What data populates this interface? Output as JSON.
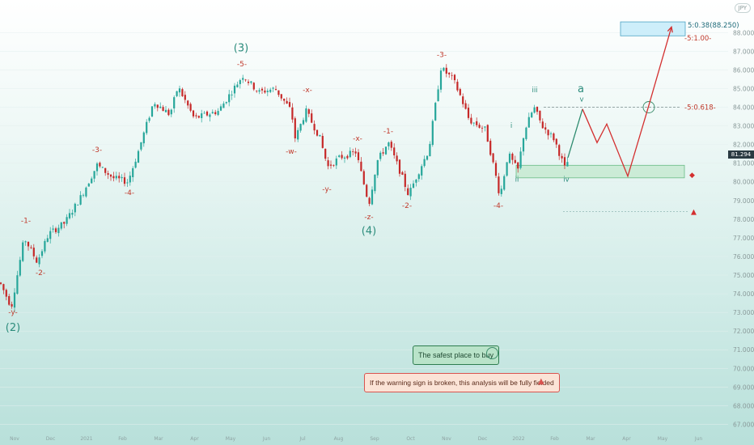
{
  "ticker": "JPY",
  "last_price": "81.294",
  "notes": {
    "safest_place": "The safest place to buy",
    "warning": "If the warning sign is broken, this analysis will be fully fielded"
  },
  "fib_labels": {
    "target": "5:0.38(88.250)",
    "level_1": "-5:1.00-",
    "level_0618": "-5:0.618-"
  },
  "colors": {
    "up": "#26a69a",
    "down": "#c62828",
    "projection": "#d32f2f",
    "projection_green": "#2e8b6f",
    "box_green": "#c9ebd4",
    "box_blue": "#cdeefa"
  },
  "chart_data": {
    "type": "candlestick",
    "ylim": [
      66.5,
      89.4
    ],
    "y_ticks": [
      "67.000",
      "68.000",
      "69.000",
      "70.000",
      "71.000",
      "72.000",
      "73.000",
      "74.000",
      "75.000",
      "76.000",
      "77.000",
      "78.000",
      "79.000",
      "80.000",
      "81.000",
      "82.000",
      "83.000",
      "84.000",
      "85.000",
      "86.000",
      "87.000",
      "88.000"
    ],
    "x_ticks": [
      "Nov",
      "Dec",
      "2021",
      "Feb",
      "Mar",
      "Apr",
      "May",
      "Jun",
      "Jul",
      "Aug",
      "Sep",
      "Oct",
      "Nov",
      "Dec",
      "2022",
      "Feb",
      "Mar",
      "Apr",
      "May",
      "Jun"
    ],
    "price_path": [
      [
        0,
        74.6
      ],
      [
        14,
        73.3
      ],
      [
        30,
        77.0
      ],
      [
        46,
        75.7
      ],
      [
        60,
        77.2
      ],
      [
        80,
        77.8
      ],
      [
        100,
        79.2
      ],
      [
        120,
        80.9
      ],
      [
        140,
        80.2
      ],
      [
        158,
        80.0
      ],
      [
        170,
        81.5
      ],
      [
        190,
        84.3
      ],
      [
        210,
        83.6
      ],
      [
        220,
        85.1
      ],
      [
        240,
        83.4
      ],
      [
        270,
        83.8
      ],
      [
        300,
        85.7
      ],
      [
        320,
        84.8
      ],
      [
        340,
        85.0
      ],
      [
        360,
        83.8
      ],
      [
        365,
        82.3
      ],
      [
        378,
        83.8
      ],
      [
        395,
        82.4
      ],
      [
        405,
        80.8
      ],
      [
        420,
        81.3
      ],
      [
        440,
        81.6
      ],
      [
        448,
        80.2
      ],
      [
        456,
        78.8
      ],
      [
        466,
        81.1
      ],
      [
        480,
        82.1
      ],
      [
        495,
        80.5
      ],
      [
        505,
        79.3
      ],
      [
        520,
        80.8
      ],
      [
        530,
        81.7
      ],
      [
        545,
        86.1
      ],
      [
        560,
        85.5
      ],
      [
        570,
        84.5
      ],
      [
        580,
        83.3
      ],
      [
        600,
        82.8
      ],
      [
        612,
        80.5
      ],
      [
        618,
        79.2
      ],
      [
        628,
        81.5
      ],
      [
        640,
        80.6
      ],
      [
        648,
        82.7
      ],
      [
        660,
        84.0
      ],
      [
        670,
        83.0
      ],
      [
        685,
        82.3
      ],
      [
        700,
        80.5
      ],
      [
        702,
        81.3
      ]
    ],
    "projection": [
      [
        702,
        81.3
      ],
      [
        720,
        83.9
      ],
      [
        738,
        82.1
      ],
      [
        750,
        83.1
      ],
      [
        776,
        80.3
      ],
      [
        800,
        83.8
      ],
      [
        830,
        88.3
      ]
    ],
    "levels": {
      "target_box": [
        88.0,
        88.4
      ],
      "fib_1": 87.8,
      "fib_0618": 84.0,
      "support_box": [
        80.3,
        80.8
      ],
      "warning_line": 78.4
    },
    "wave_labels": [
      {
        "text": "-y-",
        "x": 16,
        "y": 72.9,
        "style": "red"
      },
      {
        "text": "(2)",
        "x": 16,
        "y": 72.0,
        "style": "green"
      },
      {
        "text": "-1-",
        "x": 32,
        "y": 77.8,
        "style": "red"
      },
      {
        "text": "-2-",
        "x": 50,
        "y": 75.0,
        "style": "red"
      },
      {
        "text": "-3-",
        "x": 120,
        "y": 81.6,
        "style": "red"
      },
      {
        "text": "-4-",
        "x": 160,
        "y": 79.3,
        "style": "red"
      },
      {
        "text": "(3)",
        "x": 298,
        "y": 87.0,
        "style": "green"
      },
      {
        "text": "-5-",
        "x": 299,
        "y": 86.2,
        "style": "red"
      },
      {
        "text": "-x-",
        "x": 380,
        "y": 84.8,
        "style": "red"
      },
      {
        "text": "-w-",
        "x": 360,
        "y": 81.5,
        "style": "red"
      },
      {
        "text": "-y-",
        "x": 404,
        "y": 79.5,
        "style": "red"
      },
      {
        "text": "-x-",
        "x": 442,
        "y": 82.2,
        "style": "red"
      },
      {
        "text": "-z-",
        "x": 456,
        "y": 78.0,
        "style": "red"
      },
      {
        "text": "(4)",
        "x": 456,
        "y": 77.2,
        "style": "green"
      },
      {
        "text": "-1-",
        "x": 480,
        "y": 82.6,
        "style": "red"
      },
      {
        "text": "-2-",
        "x": 503,
        "y": 78.6,
        "style": "red"
      },
      {
        "text": "-3-",
        "x": 546,
        "y": 86.7,
        "style": "red"
      },
      {
        "text": "-4-",
        "x": 616,
        "y": 78.6,
        "style": "red"
      },
      {
        "text": "i",
        "x": 632,
        "y": 82.9,
        "style": "small"
      },
      {
        "text": "ii",
        "x": 639,
        "y": 80.0,
        "style": "small"
      },
      {
        "text": "iii",
        "x": 661,
        "y": 84.8,
        "style": "small"
      },
      {
        "text": "iv",
        "x": 700,
        "y": 80.0,
        "style": "small"
      },
      {
        "text": "v",
        "x": 719,
        "y": 84.3,
        "style": "small"
      },
      {
        "text": "a",
        "x": 718,
        "y": 84.8,
        "style": "green"
      }
    ]
  }
}
